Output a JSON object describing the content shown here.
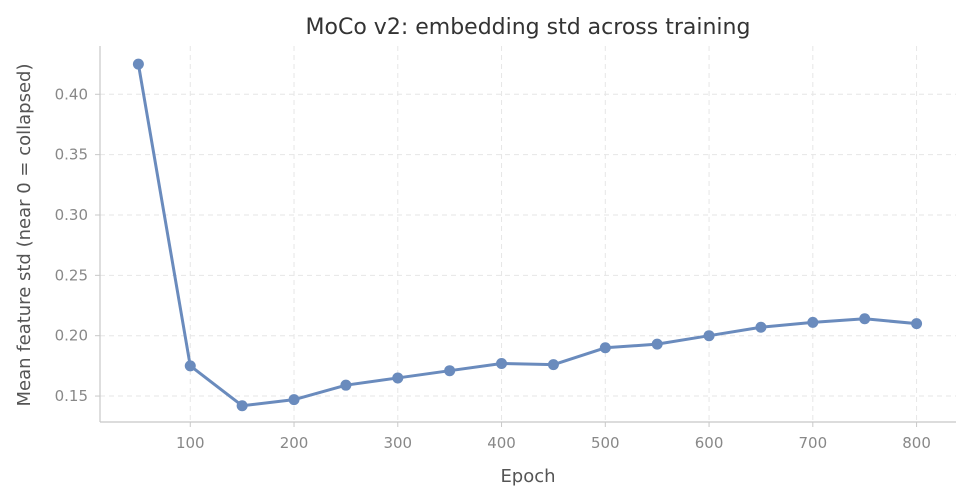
{
  "chart_data": {
    "type": "line",
    "title": "MoCo v2: embedding std across training",
    "xlabel": "Epoch",
    "ylabel": "Mean feature std  (near 0 = collapsed)",
    "x": [
      50,
      100,
      150,
      200,
      250,
      300,
      350,
      400,
      450,
      500,
      550,
      600,
      650,
      700,
      750,
      800
    ],
    "series": [
      {
        "values": [
          0.425,
          0.175,
          0.142,
          0.147,
          0.159,
          0.165,
          0.171,
          0.177,
          0.176,
          0.19,
          0.193,
          0.2,
          0.207,
          0.211,
          0.214,
          0.21
        ],
        "color": "#6a8bbd"
      }
    ],
    "xlim": [
      13,
      838
    ],
    "ylim": [
      0.1285,
      0.44
    ],
    "xticks": [
      "100",
      "200",
      "300",
      "400",
      "500",
      "600",
      "700",
      "800"
    ],
    "yticks": [
      "0.15",
      "0.20",
      "0.25",
      "0.30",
      "0.35",
      "0.40"
    ],
    "grid": true,
    "grid_style": "dashed",
    "legend": "none"
  }
}
